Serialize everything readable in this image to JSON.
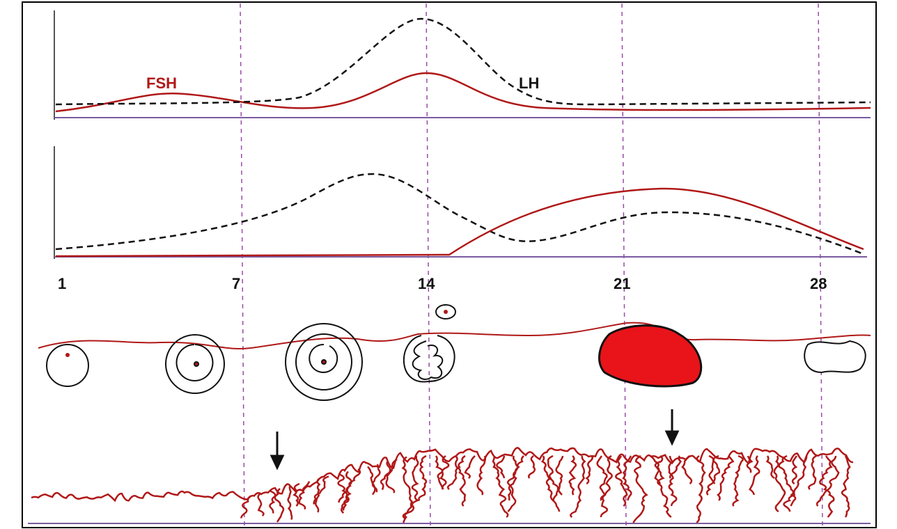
{
  "gonadotropins": {
    "fsh_label": "FSH",
    "lh_label": "LH"
  },
  "days": [
    1,
    7,
    14,
    21,
    28
  ]
}
